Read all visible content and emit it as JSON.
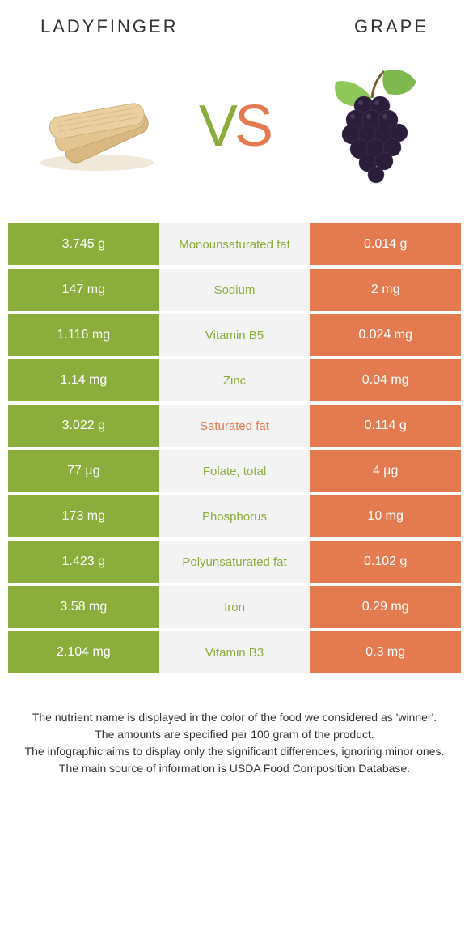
{
  "left_title": "Ladyfinger",
  "right_title": "Grape",
  "vs_v": "V",
  "vs_s": "S",
  "colors": {
    "left_bg": "#8aad3b",
    "right_bg": "#e47a4f",
    "mid_bg": "#f3f3f3",
    "left_text": "#8aad3b",
    "right_text": "#e47a4f",
    "cell_text": "#ffffff"
  },
  "rows": [
    {
      "left": "3.745 g",
      "label": "Monounsaturated fat",
      "right": "0.014 g",
      "label_color": "left"
    },
    {
      "left": "147 mg",
      "label": "Sodium",
      "right": "2 mg",
      "label_color": "left"
    },
    {
      "left": "1.116 mg",
      "label": "Vitamin B5",
      "right": "0.024 mg",
      "label_color": "left"
    },
    {
      "left": "1.14 mg",
      "label": "Zinc",
      "right": "0.04 mg",
      "label_color": "left"
    },
    {
      "left": "3.022 g",
      "label": "Saturated fat",
      "right": "0.114 g",
      "label_color": "right"
    },
    {
      "left": "77 µg",
      "label": "Folate, total",
      "right": "4 µg",
      "label_color": "left"
    },
    {
      "left": "173 mg",
      "label": "Phosphorus",
      "right": "10 mg",
      "label_color": "left"
    },
    {
      "left": "1.423 g",
      "label": "Polyunsaturated fat",
      "right": "0.102 g",
      "label_color": "left"
    },
    {
      "left": "3.58 mg",
      "label": "Iron",
      "right": "0.29 mg",
      "label_color": "left"
    },
    {
      "left": "2.104 mg",
      "label": "Vitamin B3",
      "right": "0.3 mg",
      "label_color": "left"
    }
  ],
  "footnote_lines": [
    "The nutrient name is displayed in the color of the food we considered as 'winner'.",
    "The amounts are specified per 100 gram of the product.",
    "The infographic aims to display only the significant differences, ignoring minor ones.",
    "The main source of information is USDA Food Composition Database."
  ]
}
